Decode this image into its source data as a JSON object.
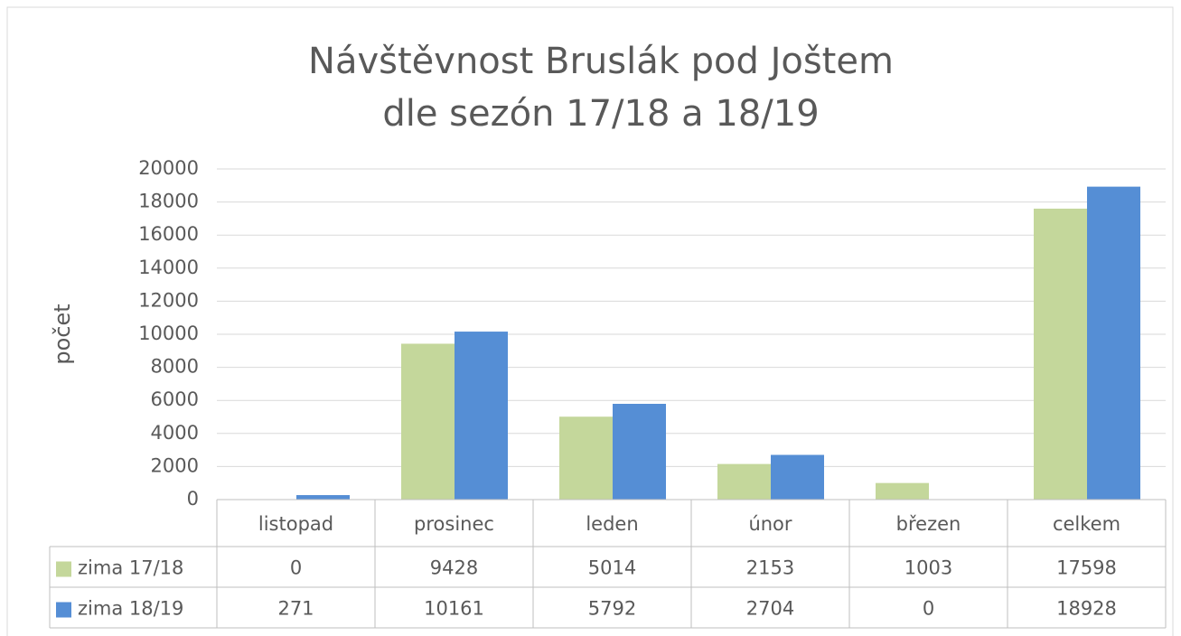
{
  "chart_data": {
    "type": "bar",
    "title": [
      "Návštěvnost Bruslák pod Joštem",
      "dle sezón 17/18 a 18/19"
    ],
    "y_label": "počet",
    "categories": [
      "listopad",
      "prosinec",
      "leden",
      "únor",
      "březen",
      "celkem"
    ],
    "series": [
      {
        "name": "zima 17/18",
        "color": "#c4d79b",
        "values": [
          0,
          9428,
          5014,
          2153,
          1003,
          17598
        ]
      },
      {
        "name": "zima 18/19",
        "color": "#558ed5",
        "values": [
          271,
          10161,
          5792,
          2704,
          0,
          18928
        ]
      }
    ],
    "ylim": [
      0,
      20000
    ],
    "yticks": [
      0,
      2000,
      4000,
      6000,
      8000,
      10000,
      12000,
      14000,
      16000,
      18000,
      20000
    ],
    "grid": true,
    "data_table": true
  }
}
